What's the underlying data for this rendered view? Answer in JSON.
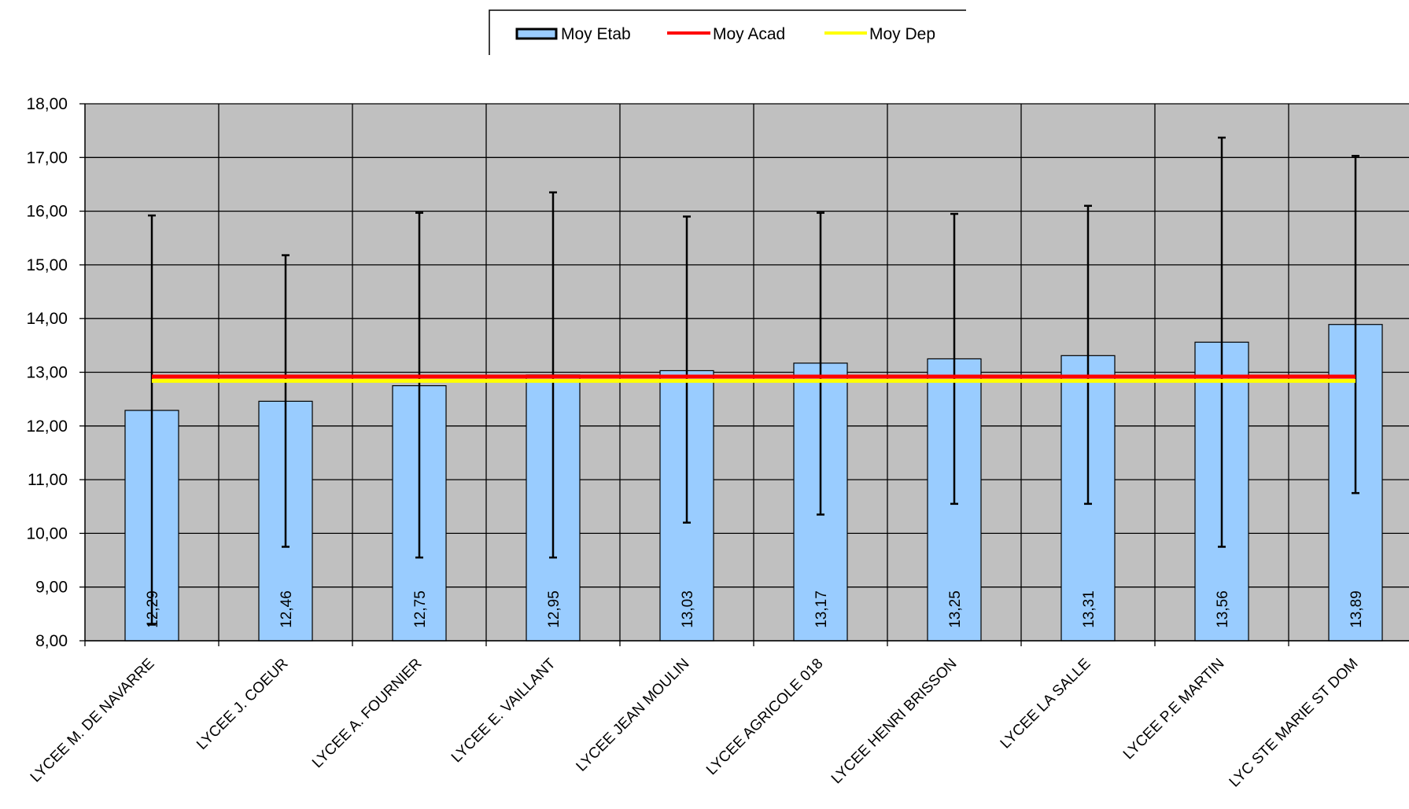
{
  "chart_data": {
    "type": "bar",
    "categories": [
      "LYCEE M. DE NAVARRE",
      "LYCEE J. COEUR",
      "LYCEE A. FOURNIER",
      "LYCEE E. VAILLANT",
      "LYCEE JEAN MOULIN",
      "LYCEE AGRICOLE 018",
      "LYCEE HENRI BRISSON",
      "LYCEE LA SALLE",
      "LYCEE P.E MARTIN",
      "LYC STE MARIE ST DOM"
    ],
    "series": [
      {
        "name": "Moy Etab",
        "values": [
          12.29,
          12.46,
          12.75,
          12.95,
          13.03,
          13.17,
          13.25,
          13.31,
          13.56,
          13.89
        ],
        "color": "#99ccff",
        "error_low": [
          8.3,
          9.75,
          9.55,
          9.55,
          10.2,
          10.35,
          10.55,
          10.55,
          9.75,
          10.75
        ],
        "error_high": [
          15.92,
          15.18,
          15.97,
          16.35,
          15.9,
          15.97,
          15.95,
          16.1,
          17.37,
          17.03
        ]
      },
      {
        "name": "Moy Acad",
        "value": 12.92,
        "color": "#ff0000"
      },
      {
        "name": "Moy Dep",
        "value": 12.84,
        "color": "#ffff00"
      }
    ],
    "data_labels": [
      "12,29",
      "12,46",
      "12,75",
      "12,95",
      "13,03",
      "13,17",
      "13,25",
      "13,31",
      "13,56",
      "13,89"
    ],
    "y_ticks": [
      "8,00",
      "9,00",
      "10,00",
      "11,00",
      "12,00",
      "13,00",
      "14,00",
      "15,00",
      "16,00",
      "17,00",
      "18,00"
    ],
    "ylim": [
      8,
      18
    ],
    "plot_background": "#c0c0c0",
    "grid": true,
    "legend_position": "top-center",
    "title": "",
    "xlabel": "",
    "ylabel": ""
  }
}
